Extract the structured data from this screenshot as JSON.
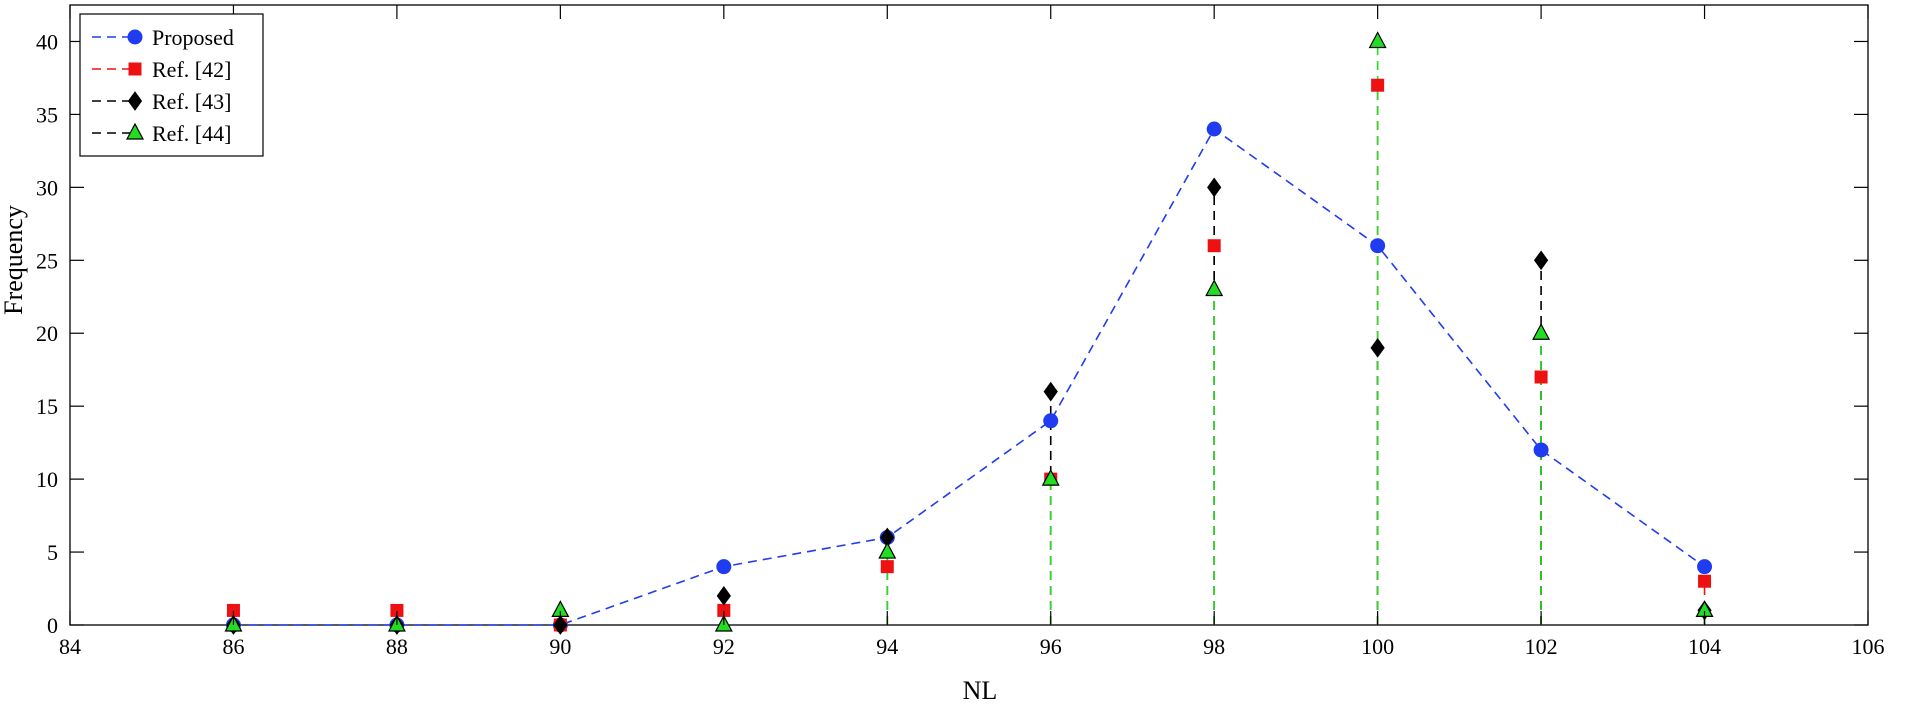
{
  "chart_data": {
    "type": "line",
    "xlabel": "NL",
    "ylabel": "Frequency",
    "xlim": [
      84,
      106
    ],
    "ylim": [
      0,
      42.5
    ],
    "xticks": [
      "84",
      "86",
      "88",
      "90",
      "92",
      "94",
      "96",
      "98",
      "100",
      "102",
      "104",
      "106"
    ],
    "yticks": [
      "0",
      "5",
      "10",
      "15",
      "20",
      "25",
      "30",
      "35",
      "40"
    ],
    "grid": false,
    "legend_position": "top-left",
    "x": [
      86,
      88,
      90,
      92,
      94,
      96,
      98,
      100,
      102,
      104
    ],
    "series": [
      {
        "name": "Proposed",
        "style": "line",
        "marker": "circle",
        "color": "#1f3cf0",
        "values": [
          0,
          0,
          0,
          4,
          6,
          14,
          34,
          26,
          12,
          4
        ]
      },
      {
        "name": "Ref. [42]",
        "style": "stem",
        "marker": "square",
        "color": "#ee1111",
        "values": [
          1,
          1,
          0,
          1,
          4,
          10,
          26,
          37,
          17,
          3
        ]
      },
      {
        "name": "Ref. [43]",
        "style": "stem",
        "marker": "diamond",
        "color": "#000000",
        "values": [
          0,
          0,
          0,
          2,
          6,
          16,
          30,
          19,
          25,
          1
        ]
      },
      {
        "name": "Ref. [44]",
        "style": "stem",
        "marker": "triangle",
        "color": "#22dd22",
        "values": [
          0,
          0,
          1,
          0,
          5,
          10,
          23,
          40,
          20,
          1
        ]
      }
    ]
  }
}
